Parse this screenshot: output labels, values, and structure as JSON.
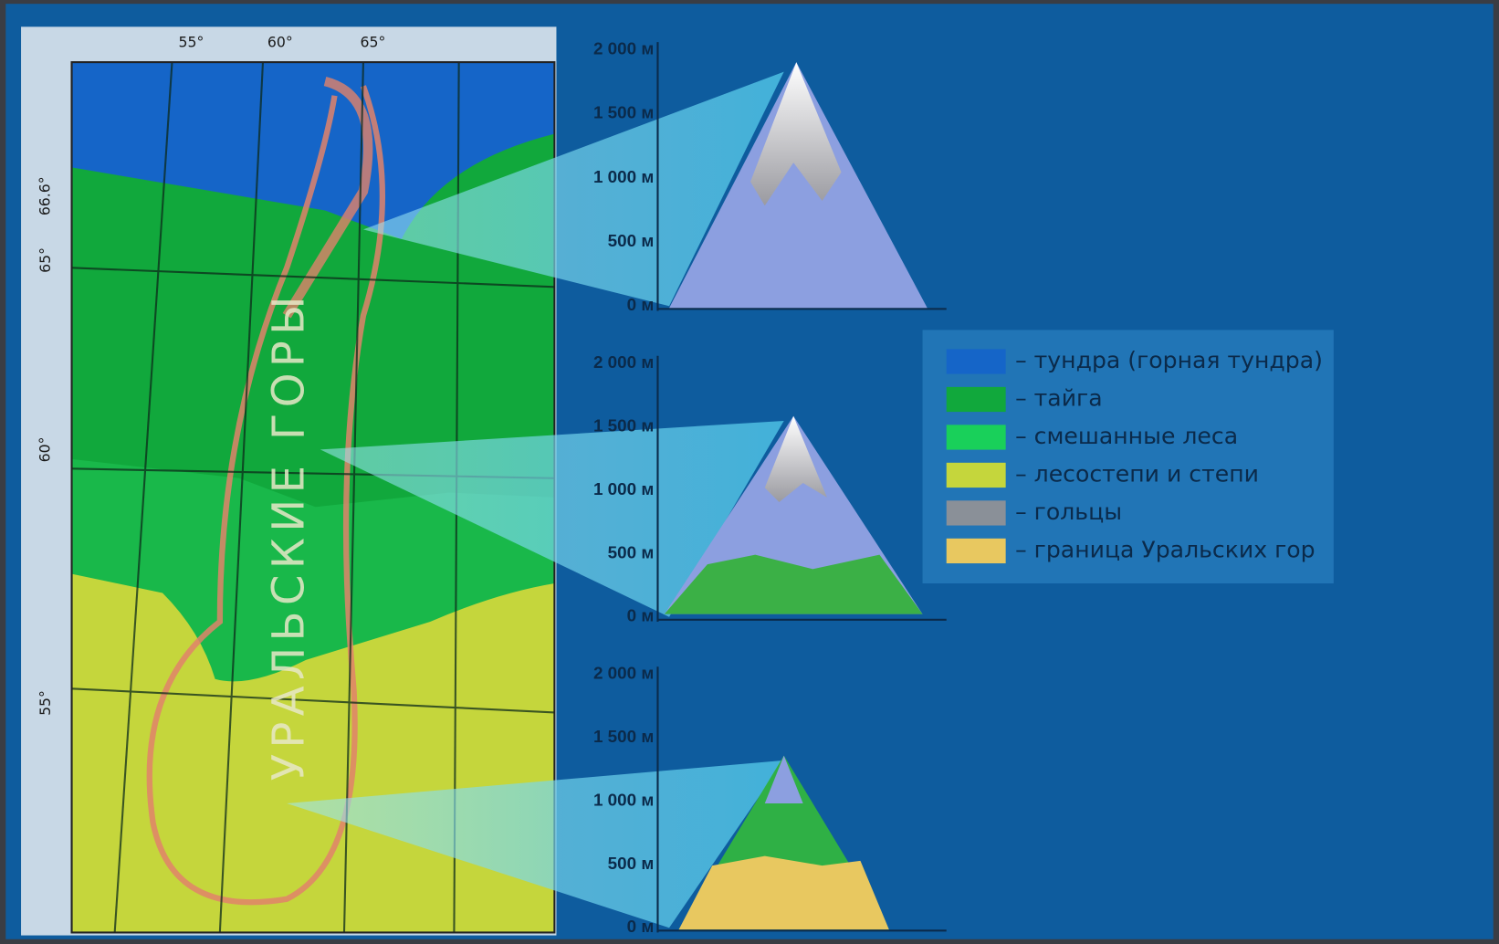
{
  "map": {
    "title": "УРАЛЬСКИЕ ГОРЫ",
    "longitudes": [
      "55°",
      "60°",
      "65°"
    ],
    "latitudes": [
      "66.6°",
      "65°",
      "60°",
      "55°"
    ]
  },
  "elevation_scale": [
    "2 000 м",
    "1 500 м",
    "1 000 м",
    "500 м",
    "0 м"
  ],
  "legend": [
    "– тундра (горная тундра)",
    "– тайга",
    "– смешанные леса",
    "– лесостепи и степи",
    "– гольцы",
    "– граница Уральских гор"
  ]
}
